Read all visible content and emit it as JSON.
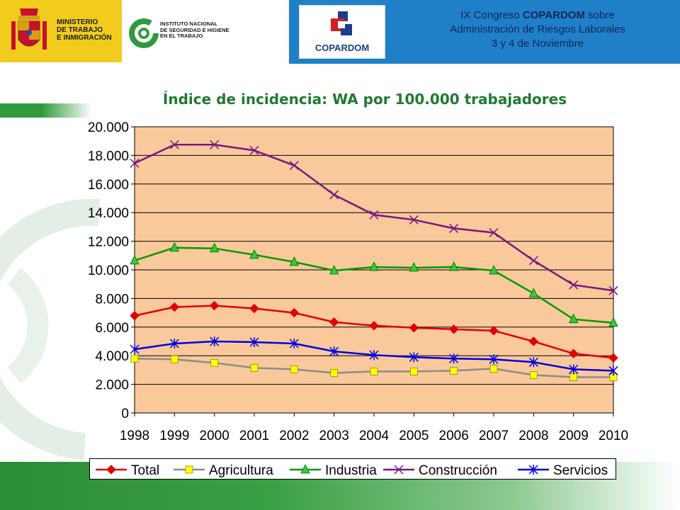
{
  "header": {
    "ministry_lines": [
      "MINISTERIO",
      "DE TRABAJO",
      "E INMIGRACIÓN"
    ],
    "institute_lines": [
      "INSTITUTO NACIONAL",
      "DE SEGURIDAD E HIGIENE",
      "EN EL TRABAJO"
    ],
    "copardom_logo": "COPARDOM",
    "congress_line1_pre": "IX Congreso ",
    "congress_line1_bold": "COPARDOM",
    "congress_line1_post": " sobre",
    "congress_line2": "Administración de Riesgos Laborales",
    "congress_line3": "3 y 4 de Noviembre"
  },
  "colors": {
    "plot_bg": "#f9c99b",
    "header_blue": "#1f80c8",
    "ministry_yellow": "#f2cc1d",
    "brand_green": "#2f9a3c",
    "title_green": "#1f7a30"
  },
  "chart_data": {
    "type": "line",
    "title": "Índice de incidencia: WA por 100.000 trabajadores",
    "x": [
      "1998",
      "1999",
      "2000",
      "2001",
      "2002",
      "2003",
      "2004",
      "2005",
      "2006",
      "2007",
      "2008",
      "2009",
      "2010"
    ],
    "ylim": [
      0,
      20000
    ],
    "yticks": [
      0,
      2000,
      4000,
      6000,
      8000,
      10000,
      12000,
      14000,
      16000,
      18000,
      20000
    ],
    "ytick_labels": [
      "0",
      "2.000",
      "4.000",
      "6.000",
      "8.000",
      "10.000",
      "12.000",
      "14.000",
      "16.000",
      "18.000",
      "20.000"
    ],
    "grid": true,
    "legend_position": "bottom",
    "series": [
      {
        "name": "Total",
        "color": "#e00000",
        "marker": "diamond",
        "values": [
          6800,
          7400,
          7500,
          7300,
          7000,
          6350,
          6100,
          5950,
          5850,
          5750,
          5000,
          4150,
          3850
        ]
      },
      {
        "name": "Agricultura",
        "color": "#8c8c8c",
        "marker": "square",
        "values": [
          3800,
          3750,
          3500,
          3150,
          3050,
          2800,
          2900,
          2900,
          2950,
          3100,
          2650,
          2500,
          2500
        ]
      },
      {
        "name": "Industria",
        "color": "#009a00",
        "marker": "triangle",
        "values": [
          10650,
          11550,
          11500,
          11050,
          10550,
          9950,
          10200,
          10150,
          10200,
          9950,
          8350,
          6550,
          6300
        ]
      },
      {
        "name": "Construcción",
        "color": "#7b1580",
        "marker": "x",
        "values": [
          17450,
          18750,
          18750,
          18350,
          17300,
          15250,
          13850,
          13500,
          12900,
          12600,
          10650,
          8950,
          8550
        ]
      },
      {
        "name": "Servicios",
        "color": "#0000e0",
        "marker": "star",
        "values": [
          4450,
          4850,
          5000,
          4950,
          4850,
          4300,
          4050,
          3900,
          3800,
          3750,
          3550,
          3050,
          2950
        ]
      }
    ]
  }
}
